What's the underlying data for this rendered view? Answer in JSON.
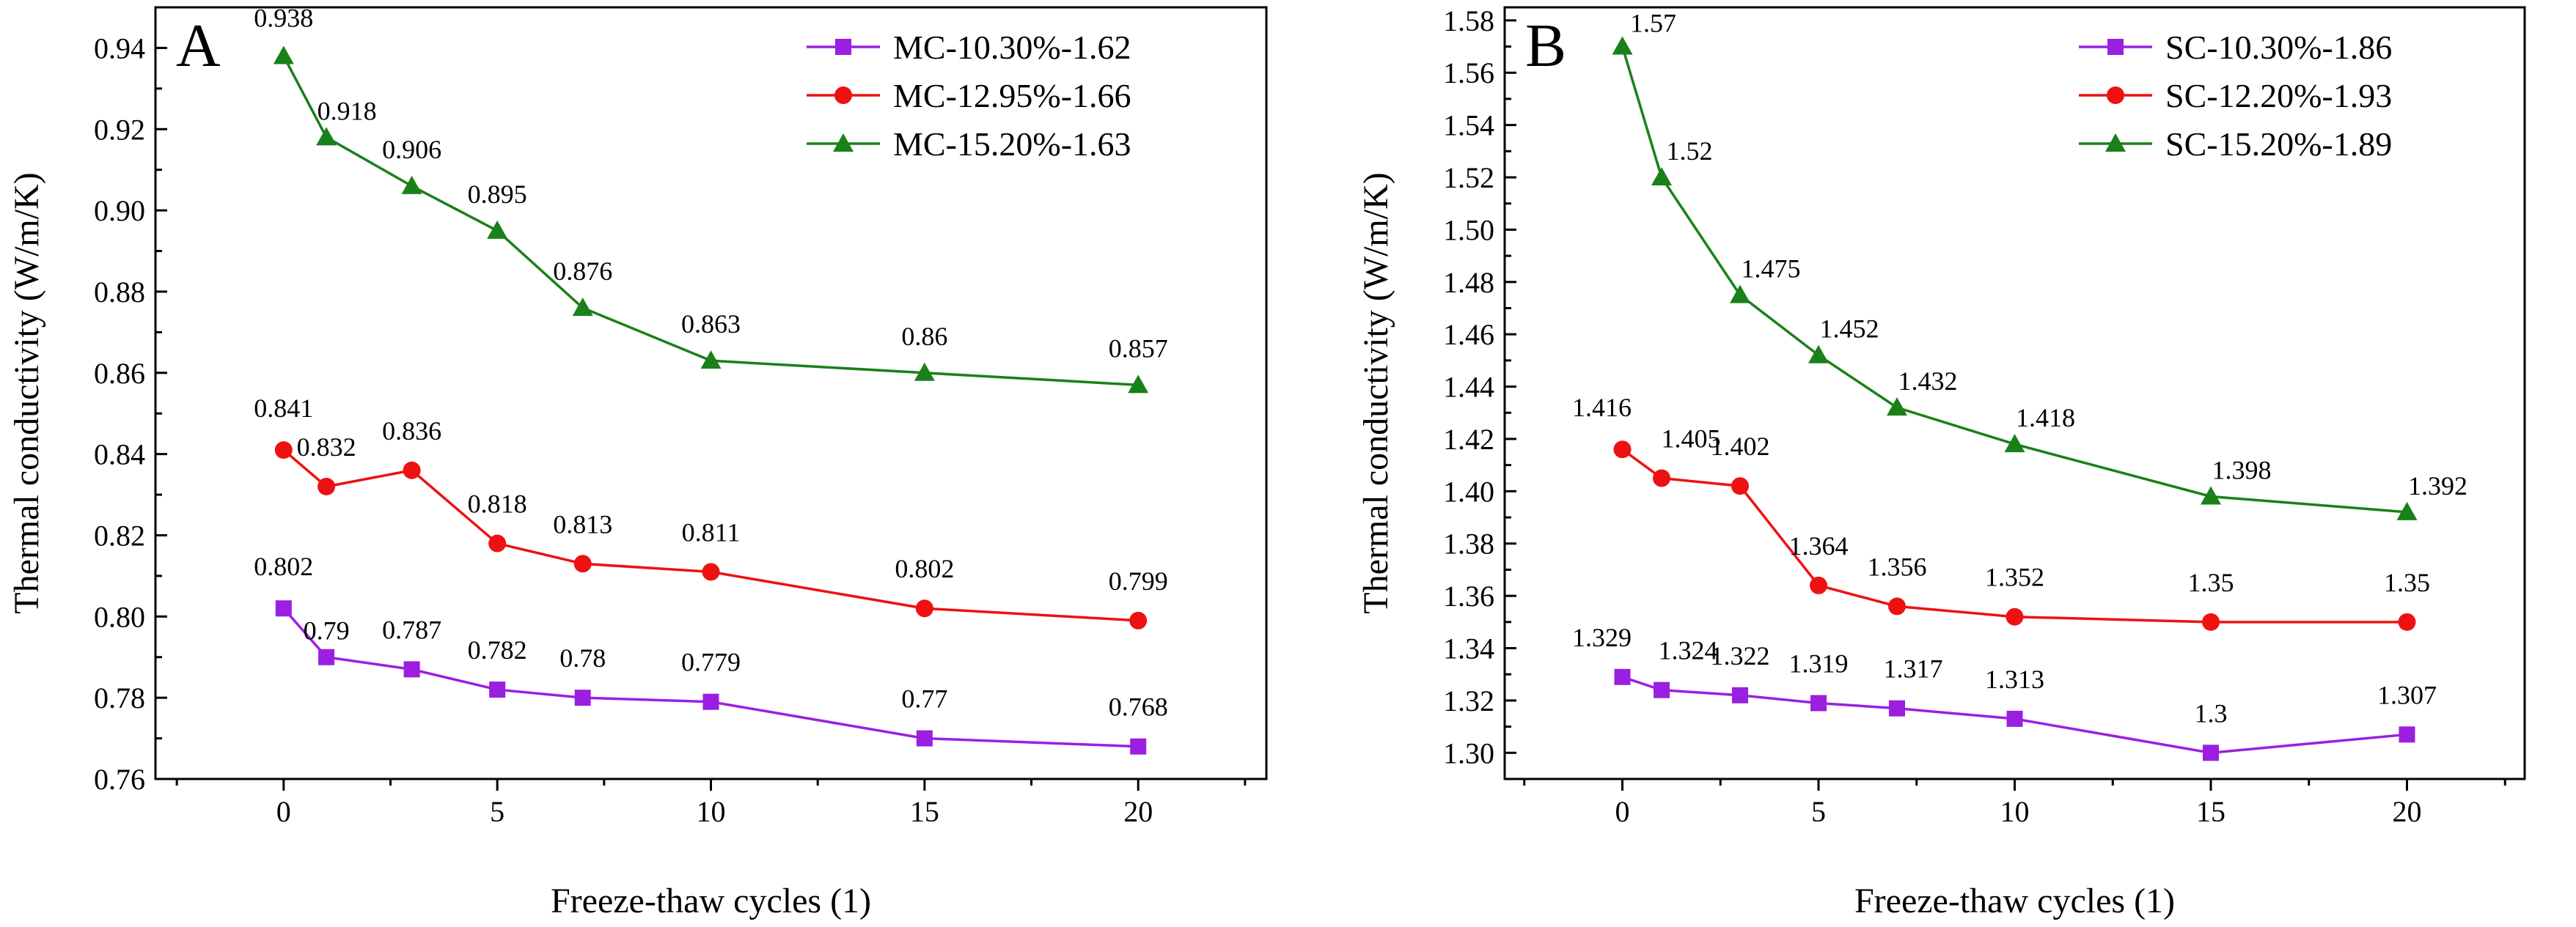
{
  "chart_data": [
    {
      "type": "line",
      "panel_label": "A",
      "xlabel": "Freeze-thaw cycles (1)",
      "ylabel": "Thermal conductivity (W/m/K)",
      "xlim": [
        -3,
        23
      ],
      "ylim": [
        0.76,
        0.95
      ],
      "x_ticks": [
        "0",
        "5",
        "10",
        "15",
        "20"
      ],
      "y_ticks": [
        "0.76",
        "0.78",
        "0.80",
        "0.82",
        "0.84",
        "0.86",
        "0.88",
        "0.90",
        "0.92",
        "0.94"
      ],
      "x": [
        0,
        1,
        3,
        5,
        7,
        10,
        15,
        20
      ],
      "legend_position": "top-right",
      "grid": false,
      "series": [
        {
          "name": "MC-10.30%-1.62",
          "color": "#9a1fe0",
          "marker": "square",
          "values": [
            0.802,
            0.79,
            0.787,
            0.782,
            0.78,
            0.779,
            0.77,
            0.768
          ],
          "labels": [
            "0.802",
            "0.79",
            "0.787",
            "0.782",
            "0.78",
            "0.779",
            "0.77",
            "0.768"
          ]
        },
        {
          "name": "MC-12.95%-1.66",
          "color": "#ee1111",
          "marker": "circle",
          "values": [
            0.841,
            0.832,
            0.836,
            0.818,
            0.813,
            0.811,
            0.802,
            0.799
          ],
          "labels": [
            "0.841",
            "0.832",
            "0.836",
            "0.818",
            "0.813",
            "0.811",
            "0.802",
            "0.799"
          ]
        },
        {
          "name": "MC-15.20%-1.63",
          "color": "#1a801a",
          "marker": "triangle",
          "values": [
            0.938,
            0.918,
            0.906,
            0.895,
            0.876,
            0.863,
            0.86,
            0.857
          ],
          "labels": [
            "0.938",
            "0.918",
            "0.906",
            "0.895",
            "0.876",
            "0.863",
            "0.86",
            "0.857"
          ]
        }
      ]
    },
    {
      "type": "line",
      "panel_label": "B",
      "xlabel": "Freeze-thaw cycles (1)",
      "ylabel": "Thermal conductivity (W/m/K)",
      "xlim": [
        -3,
        23
      ],
      "ylim": [
        1.29,
        1.585
      ],
      "x_ticks": [
        "0",
        "5",
        "10",
        "15",
        "20"
      ],
      "y_ticks": [
        "1.30",
        "1.32",
        "1.34",
        "1.36",
        "1.38",
        "1.40",
        "1.42",
        "1.44",
        "1.46",
        "1.48",
        "1.50",
        "1.52",
        "1.54",
        "1.56",
        "1.58"
      ],
      "x": [
        0,
        1,
        3,
        5,
        7,
        10,
        15,
        20
      ],
      "legend_position": "top-right",
      "grid": false,
      "series": [
        {
          "name": "SC-10.30%-1.86",
          "color": "#9a1fe0",
          "marker": "square",
          "values": [
            1.329,
            1.324,
            1.322,
            1.319,
            1.317,
            1.313,
            1.3,
            1.307
          ],
          "labels": [
            "1.329",
            "1.324",
            "1.322",
            "1.319",
            "1.317",
            "1.313",
            "1.3",
            "1.307"
          ]
        },
        {
          "name": "SC-12.20%-1.93",
          "color": "#ee1111",
          "marker": "circle",
          "values": [
            1.416,
            1.405,
            1.402,
            1.364,
            1.356,
            1.352,
            1.35,
            1.35
          ],
          "labels": [
            "1.416",
            "1.405",
            "1.402",
            "1.364",
            "1.356",
            "1.352",
            "1.35",
            "1.35"
          ]
        },
        {
          "name": "SC-15.20%-1.89",
          "color": "#1a801a",
          "marker": "triangle",
          "values": [
            1.57,
            1.52,
            1.475,
            1.452,
            1.432,
            1.418,
            1.398,
            1.392
          ],
          "labels": [
            "1.57",
            "1.52",
            "1.475",
            "1.452",
            "1.432",
            "1.418",
            "1.398",
            "1.392"
          ]
        }
      ]
    }
  ]
}
